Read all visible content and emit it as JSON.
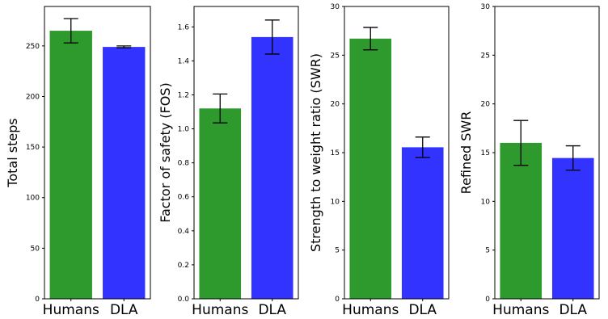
{
  "chart_data": [
    {
      "type": "bar",
      "title": "",
      "xlabel": "",
      "ylabel": "Total steps",
      "categories": [
        "Humans",
        "DLA"
      ],
      "values": [
        265,
        249
      ],
      "errors": [
        12,
        1
      ],
      "colors": [
        "#2e9a2e",
        "#3333ff"
      ],
      "ylim": [
        0,
        289
      ],
      "yticks": [
        0,
        50,
        100,
        150,
        200,
        250
      ],
      "ytick_labels": [
        "0",
        "50",
        "100",
        "150",
        "200",
        "250"
      ],
      "grid": false
    },
    {
      "type": "bar",
      "title": "",
      "xlabel": "",
      "ylabel": "Factor of safety (FOS)",
      "categories": [
        "Humans",
        "DLA"
      ],
      "values": [
        1.12,
        1.54
      ],
      "errors": [
        0.085,
        0.1
      ],
      "colors": [
        "#2e9a2e",
        "#3333ff"
      ],
      "ylim": [
        0,
        1.72
      ],
      "yticks": [
        0.0,
        0.2,
        0.4,
        0.6,
        0.8,
        1.0,
        1.2,
        1.4,
        1.6
      ],
      "ytick_labels": [
        "0.0",
        "0.2",
        "0.4",
        "0.6",
        "0.8",
        "1.0",
        "1.2",
        "1.4",
        "1.6"
      ],
      "grid": false
    },
    {
      "type": "bar",
      "title": "",
      "xlabel": "",
      "ylabel": "Strength to weight ratio (SWR)",
      "categories": [
        "Humans",
        "DLA"
      ],
      "values": [
        26.7,
        15.55
      ],
      "errors": [
        1.15,
        1.05
      ],
      "colors": [
        "#2e9a2e",
        "#3333ff"
      ],
      "ylim": [
        0,
        30
      ],
      "yticks": [
        0,
        5,
        10,
        15,
        20,
        25,
        30
      ],
      "ytick_labels": [
        "0",
        "5",
        "10",
        "15",
        "20",
        "25",
        "30"
      ],
      "grid": false
    },
    {
      "type": "bar",
      "title": "",
      "xlabel": "",
      "ylabel": "Refined SWR",
      "categories": [
        "Humans",
        "DLA"
      ],
      "values": [
        16.0,
        14.45
      ],
      "errors": [
        2.3,
        1.25
      ],
      "colors": [
        "#2e9a2e",
        "#3333ff"
      ],
      "ylim": [
        0,
        30
      ],
      "yticks": [
        0,
        5,
        10,
        15,
        20,
        25,
        30
      ],
      "ytick_labels": [
        "0",
        "5",
        "10",
        "15",
        "20",
        "25",
        "30"
      ],
      "grid": false
    }
  ]
}
